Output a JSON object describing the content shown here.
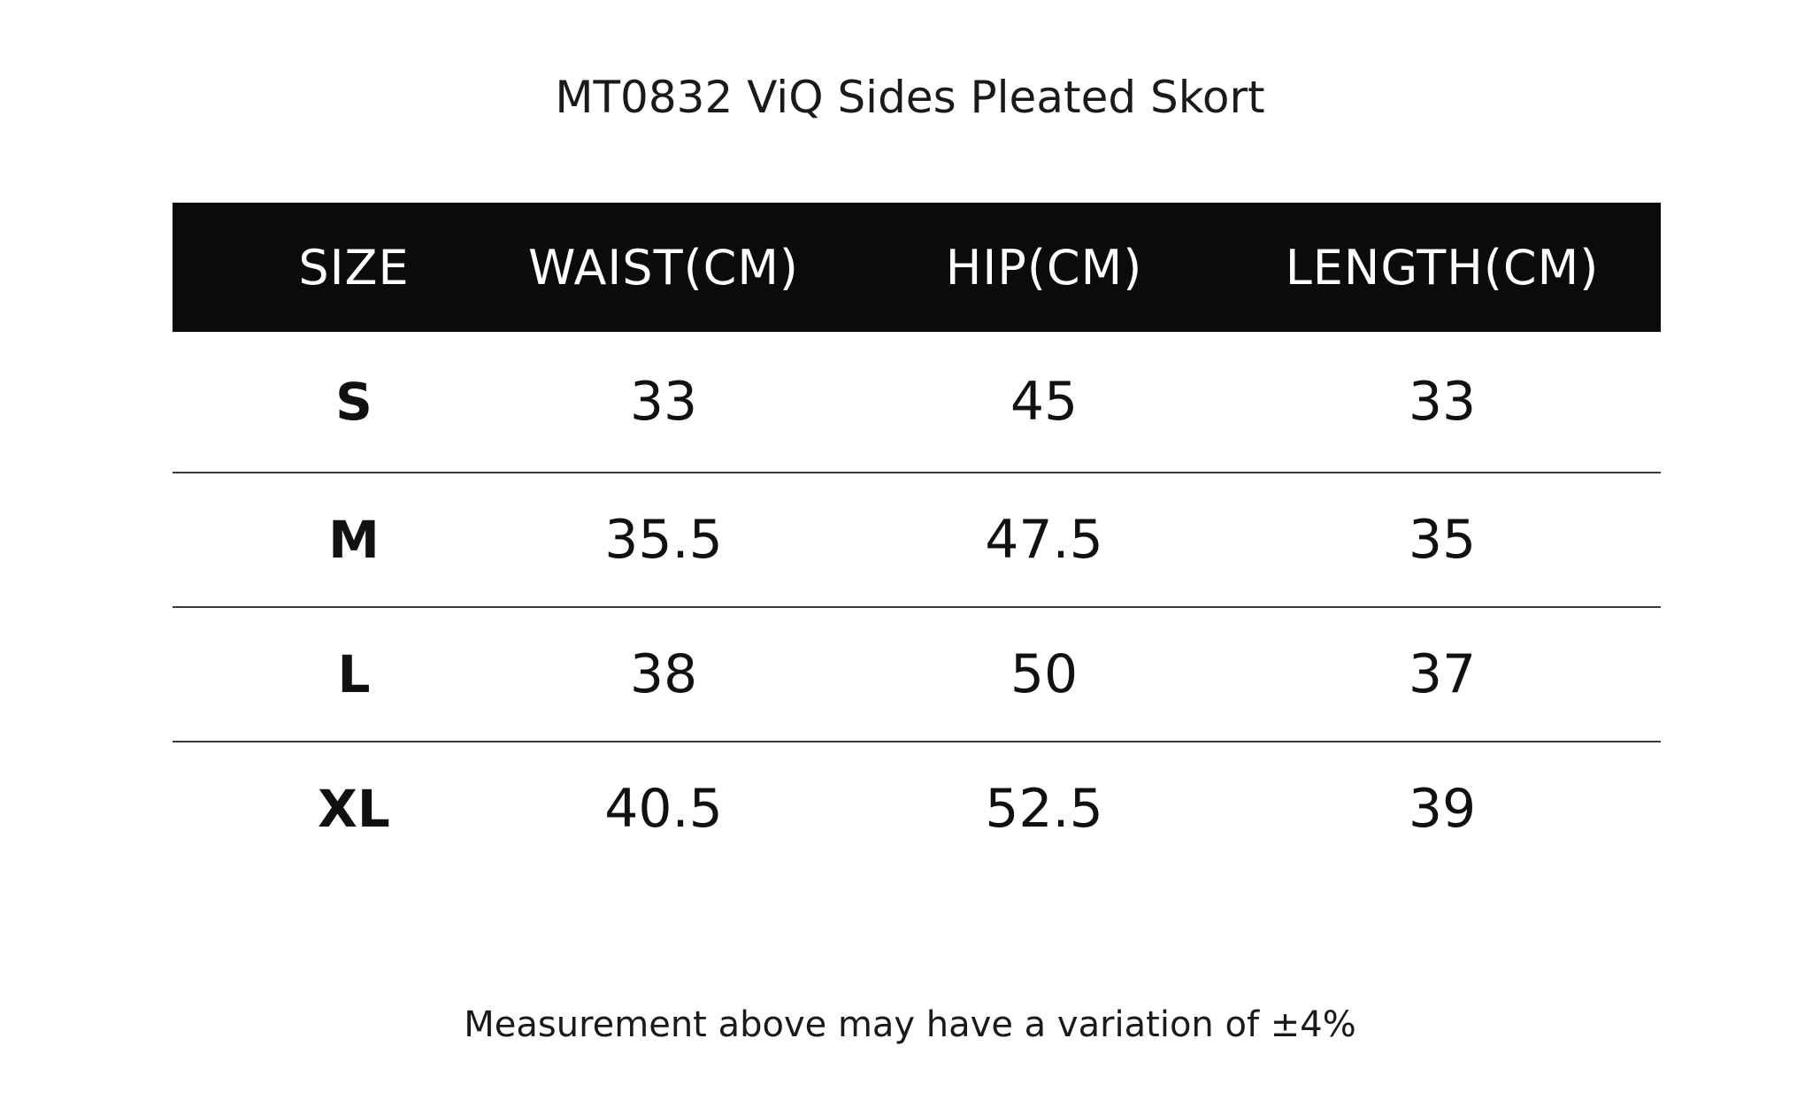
{
  "title": "MT0832 ViQ Sides Pleated Skort",
  "table": {
    "headers": [
      "SIZE",
      "WAIST(CM)",
      "HIP(CM)",
      "LENGTH(CM)"
    ],
    "rows": [
      {
        "size": "S",
        "waist": "33",
        "hip": "45",
        "length": "33"
      },
      {
        "size": "M",
        "waist": "35.5",
        "hip": "47.5",
        "length": "35"
      },
      {
        "size": "L",
        "waist": "38",
        "hip": "50",
        "length": "37"
      },
      {
        "size": "XL",
        "waist": "40.5",
        "hip": "52.5",
        "length": "39"
      }
    ]
  },
  "footnote": "Measurement above may have a variation of ±4%",
  "colors": {
    "header_background": "#0a0c0b",
    "header_text": "#ffffff",
    "body_text": "#111111",
    "row_divider": "#3a3a3a"
  }
}
